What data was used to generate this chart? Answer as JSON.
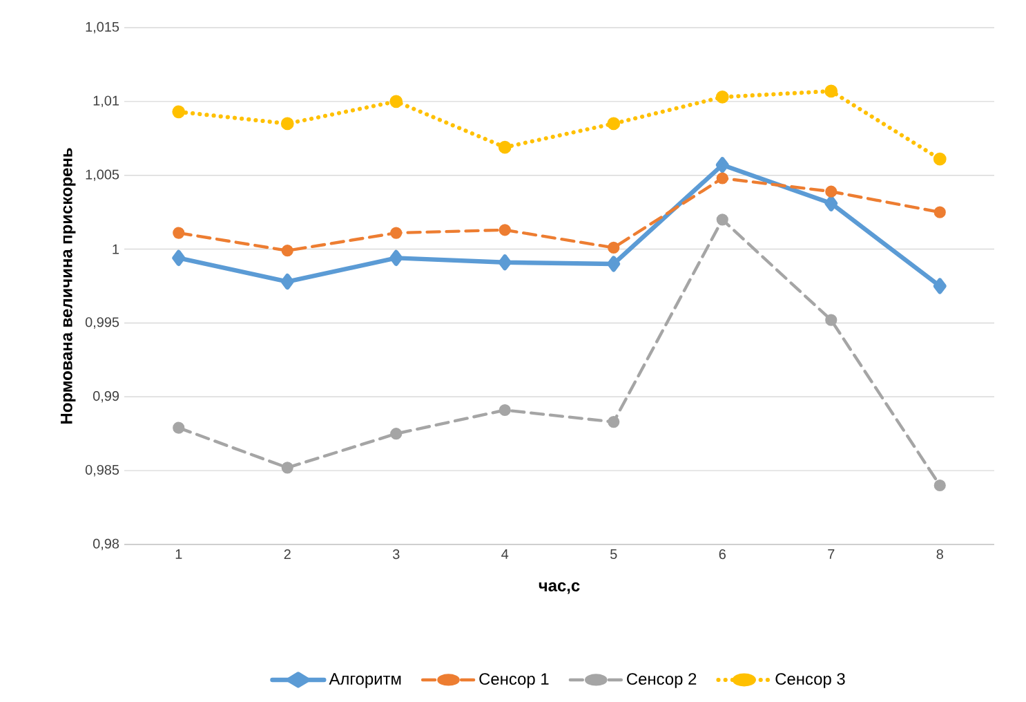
{
  "chart_data": {
    "type": "line",
    "xlabel": "час,с",
    "ylabel": "Нормована величина прискорень",
    "categories": [
      "1",
      "2",
      "3",
      "4",
      "5",
      "6",
      "7",
      "8"
    ],
    "series": [
      {
        "name": "Алгоритм",
        "color": "#5b9bd5",
        "marker": "diamond",
        "line_style": "solid",
        "values": [
          0.9994,
          0.9978,
          0.9994,
          0.9991,
          0.999,
          1.0057,
          1.0031,
          0.9975
        ]
      },
      {
        "name": "Сенсор 1",
        "color": "#ed7d31",
        "marker": "circle",
        "line_style": "dashed",
        "values": [
          1.0011,
          0.9999,
          1.0011,
          1.0013,
          1.0001,
          1.0048,
          1.0039,
          1.0025
        ]
      },
      {
        "name": "Сенсор 2",
        "color": "#a5a5a5",
        "marker": "circle",
        "line_style": "dashed",
        "values": [
          0.9879,
          0.9852,
          0.9875,
          0.9891,
          0.9883,
          1.002,
          0.9952,
          0.984
        ]
      },
      {
        "name": "Сенсор 3",
        "color": "#ffc000",
        "marker": "circle",
        "line_style": "dotted",
        "values": [
          1.0093,
          1.0085,
          1.01,
          1.0069,
          1.0085,
          1.0103,
          1.0107,
          1.0061
        ]
      }
    ],
    "ylim": [
      0.98,
      1.015
    ],
    "yticks": [
      {
        "value": 0.98,
        "label": "0,98"
      },
      {
        "value": 0.985,
        "label": "0,985"
      },
      {
        "value": 0.99,
        "label": "0,99"
      },
      {
        "value": 0.995,
        "label": "0,995"
      },
      1,
      {
        "value": 1.005,
        "label": "1,005"
      },
      {
        "value": 1.01,
        "label": "1,01"
      },
      {
        "value": 1.015,
        "label": "1,015"
      }
    ],
    "grid": "y",
    "legend": "bottom"
  }
}
